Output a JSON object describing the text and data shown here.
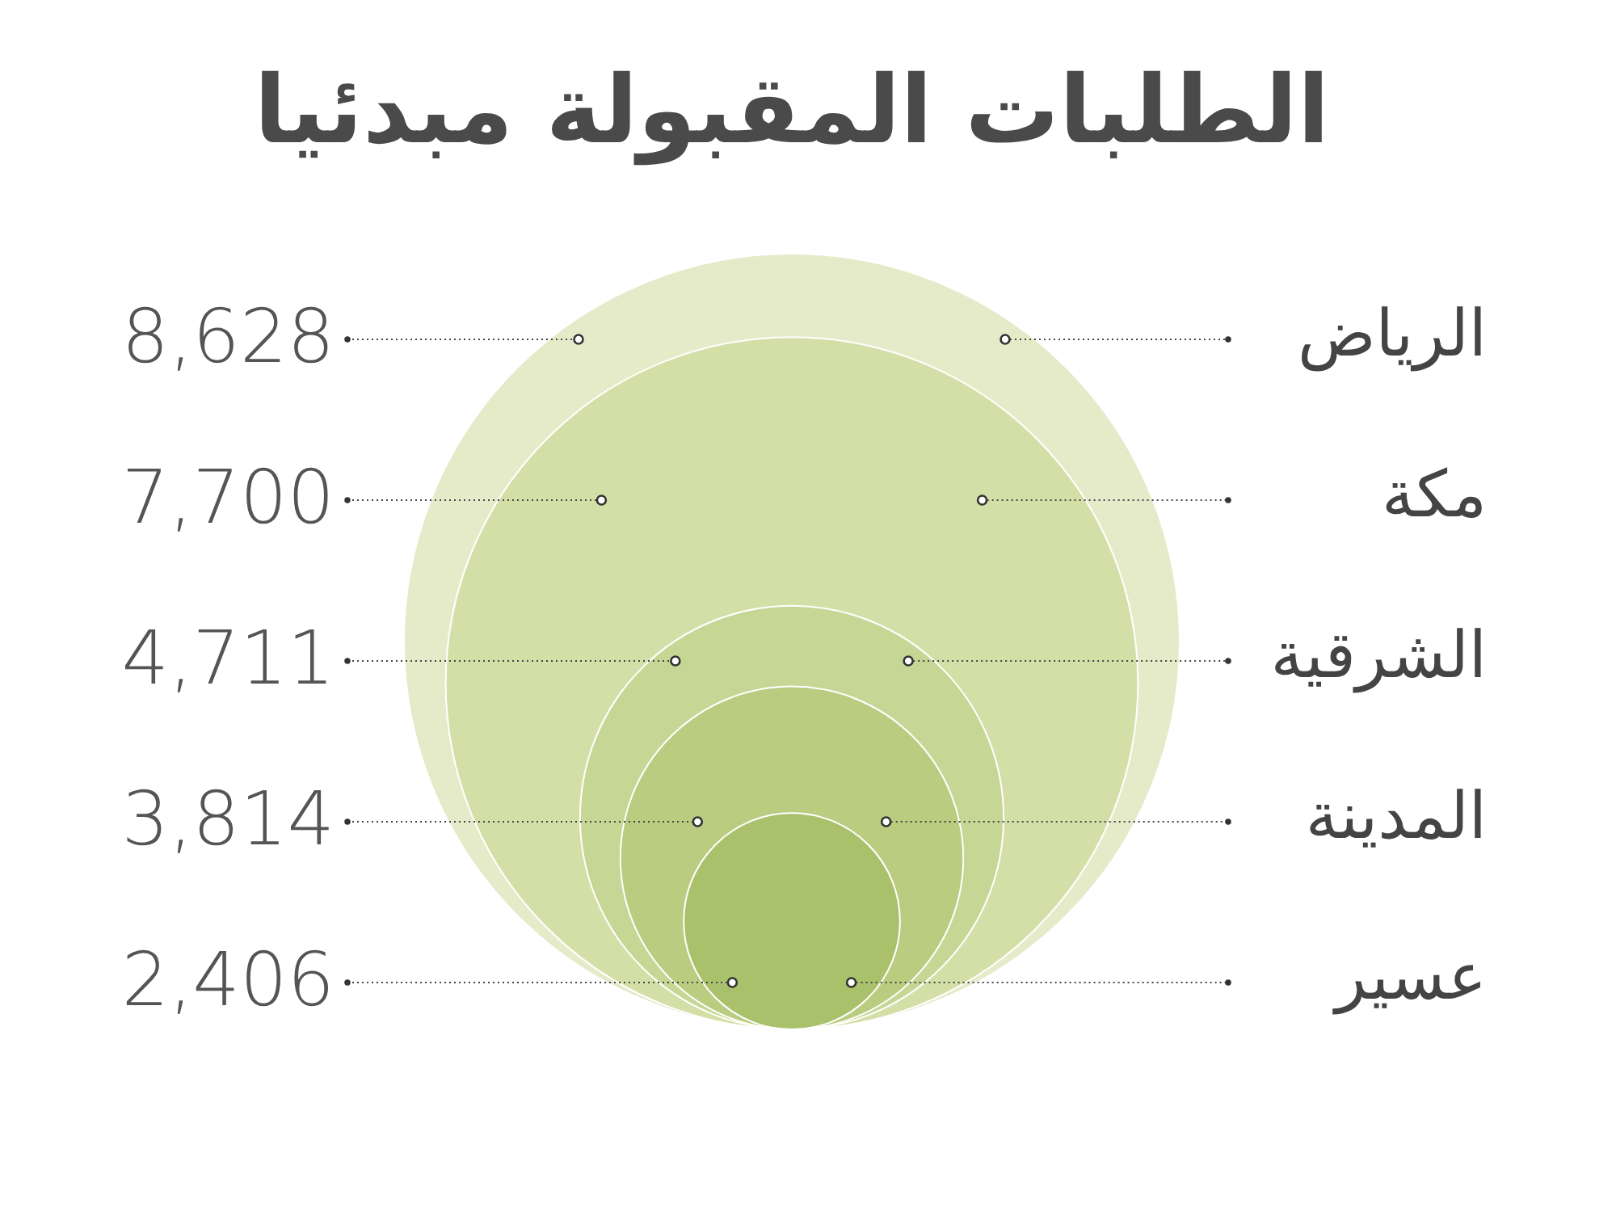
{
  "chart_data": {
    "type": "other",
    "title": "الطلبات المقبولة مبدئيا",
    "categories": [
      "الرياض",
      "مكة",
      "الشرقية",
      "المدينة",
      "عسير"
    ],
    "values": [
      8628,
      7700,
      4711,
      3814,
      2406
    ],
    "colors": [
      "#e5ebc9",
      "#d4dfa8",
      "#c6d694",
      "#b9cc80",
      "#aac16c"
    ],
    "value_labels": [
      "8,628",
      "7,700",
      "4,711",
      "3,814",
      "2,406"
    ]
  }
}
